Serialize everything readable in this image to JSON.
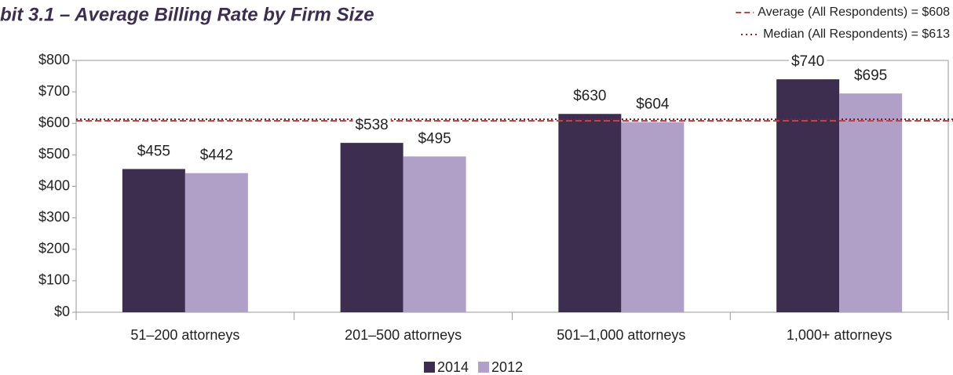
{
  "chart_data": {
    "type": "bar",
    "title": "bit 3.1 – Average Billing Rate by Firm Size",
    "categories": [
      "51–200 attorneys",
      "201–500 attorneys",
      "501–1,000 attorneys",
      "1,000+ attorneys"
    ],
    "series": [
      {
        "name": "2014",
        "color": "#3d2e4f",
        "values": [
          455,
          538,
          630,
          740
        ],
        "value_labels": [
          "$455",
          "$538",
          "$630",
          "$740"
        ]
      },
      {
        "name": "2012",
        "color": "#b0a0c8",
        "values": [
          442,
          495,
          604,
          695
        ],
        "value_labels": [
          "$442",
          "$495",
          "$604",
          "$695"
        ]
      }
    ],
    "reference_lines": [
      {
        "label": "Average (All Respondents) = $608",
        "value": 608,
        "style": "dashed",
        "color": "#b24a4a"
      },
      {
        "label": "Median  (All Respondents) = $613",
        "value": 613,
        "style": "dotted",
        "color": "#8b1a2b"
      }
    ],
    "ylim": [
      0,
      800
    ],
    "yticks": [
      {
        "value": 0,
        "label": "$0"
      },
      {
        "value": 100,
        "label": "$100"
      },
      {
        "value": 200,
        "label": "$200"
      },
      {
        "value": 300,
        "label": "$300"
      },
      {
        "value": 400,
        "label": "$400"
      },
      {
        "value": 500,
        "label": "$500"
      },
      {
        "value": 600,
        "label": "$600"
      },
      {
        "value": 700,
        "label": "$700"
      },
      {
        "value": 800,
        "label": "$800"
      }
    ],
    "grid": false,
    "legend": "bottom"
  }
}
